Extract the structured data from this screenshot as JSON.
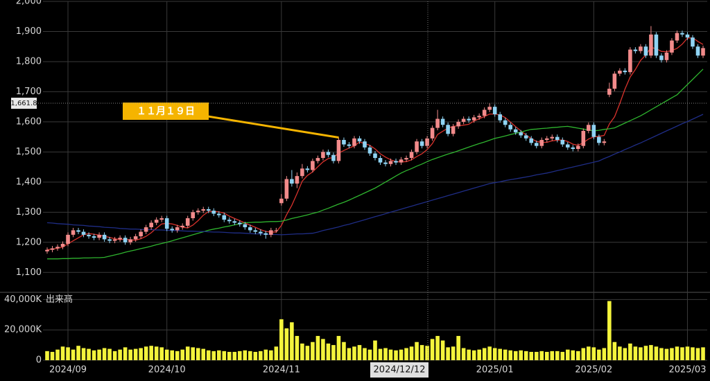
{
  "chart_data": {
    "type": "candlestick",
    "categories": [
      null,
      null,
      null,
      null,
      "2024/09",
      null,
      null,
      null,
      null,
      null,
      null,
      null,
      null,
      null,
      null,
      null,
      null,
      null,
      null,
      null,
      null,
      null,
      null,
      "2024/10",
      null,
      null,
      null,
      null,
      null,
      null,
      null,
      null,
      null,
      null,
      null,
      null,
      null,
      null,
      null,
      null,
      null,
      null,
      null,
      null,
      null,
      "2024/11",
      null,
      null,
      null,
      null,
      null,
      null,
      null,
      null,
      null,
      null,
      null,
      null,
      null,
      null,
      null,
      null,
      null,
      null,
      null,
      null,
      null,
      null,
      null,
      null,
      null,
      null,
      null,
      null,
      null,
      null,
      null,
      null,
      null,
      null,
      null,
      null,
      null,
      null,
      null,
      null,
      "2025/01",
      null,
      null,
      null,
      null,
      null,
      null,
      null,
      null,
      null,
      null,
      null,
      null,
      null,
      null,
      null,
      null,
      null,
      null,
      "2025/02",
      null,
      null,
      null,
      null,
      null,
      null,
      null,
      null,
      null,
      null,
      null,
      null,
      null,
      null,
      null,
      null,
      null,
      "2025/03",
      null,
      null,
      null
    ],
    "open": [
      1170,
      1175,
      1180,
      1185,
      1195,
      1225,
      1240,
      1235,
      1225,
      1220,
      1215,
      1225,
      1210,
      1205,
      1210,
      1215,
      1200,
      1210,
      1220,
      1235,
      1250,
      1265,
      1275,
      1280,
      1245,
      1240,
      1250,
      1255,
      1280,
      1300,
      1305,
      1310,
      1305,
      1295,
      1290,
      1275,
      1270,
      1265,
      1260,
      1250,
      1240,
      1235,
      1230,
      1225,
      1240,
      1330,
      1345,
      1410,
      1395,
      1420,
      1445,
      1440,
      1470,
      1480,
      1500,
      1490,
      1470,
      1540,
      1525,
      1520,
      1545,
      1535,
      1515,
      1495,
      1480,
      1465,
      1460,
      1470,
      1465,
      1475,
      1480,
      1500,
      1535,
      1520,
      1545,
      1580,
      1610,
      1590,
      1560,
      1585,
      1600,
      1610,
      1605,
      1615,
      1620,
      1640,
      1650,
      1625,
      1605,
      1590,
      1575,
      1565,
      1555,
      1545,
      1530,
      1520,
      1540,
      1545,
      1550,
      1540,
      1525,
      1515,
      1510,
      1520,
      1570,
      1590,
      1550,
      1530,
      1690,
      1710,
      1760,
      1770,
      1765,
      1840,
      1835,
      1850,
      1820,
      1890,
      1820,
      1805,
      1830,
      1870,
      1895,
      1890,
      1880,
      1850,
      1820
    ],
    "high": [
      1183,
      1188,
      1193,
      1203,
      1233,
      1248,
      1248,
      1243,
      1233,
      1228,
      1233,
      1233,
      1218,
      1218,
      1223,
      1223,
      1218,
      1228,
      1243,
      1258,
      1273,
      1283,
      1288,
      1288,
      1253,
      1258,
      1263,
      1288,
      1308,
      1313,
      1318,
      1318,
      1313,
      1303,
      1298,
      1283,
      1278,
      1273,
      1268,
      1258,
      1248,
      1243,
      1238,
      1248,
      1248,
      1360,
      1420,
      1440,
      1432,
      1460,
      1453,
      1478,
      1488,
      1508,
      1508,
      1498,
      1548,
      1548,
      1533,
      1553,
      1553,
      1543,
      1523,
      1503,
      1488,
      1473,
      1478,
      1478,
      1483,
      1488,
      1508,
      1543,
      1543,
      1553,
      1588,
      1640,
      1618,
      1598,
      1593,
      1608,
      1618,
      1618,
      1623,
      1628,
      1648,
      1662,
      1658,
      1633,
      1613,
      1598,
      1583,
      1573,
      1563,
      1553,
      1538,
      1548,
      1553,
      1558,
      1558,
      1548,
      1533,
      1523,
      1528,
      1578,
      1598,
      1598,
      1558,
      1543,
      1730,
      1768,
      1778,
      1778,
      1848,
      1848,
      1858,
      1858,
      1918,
      1898,
      1828,
      1838,
      1878,
      1903,
      1903,
      1898,
      1888,
      1858,
      1853
    ],
    "low": [
      1162,
      1167,
      1172,
      1177,
      1187,
      1217,
      1227,
      1217,
      1212,
      1207,
      1207,
      1202,
      1197,
      1197,
      1202,
      1192,
      1192,
      1202,
      1212,
      1227,
      1242,
      1257,
      1267,
      1237,
      1232,
      1232,
      1242,
      1247,
      1272,
      1292,
      1297,
      1297,
      1287,
      1282,
      1267,
      1262,
      1257,
      1252,
      1242,
      1232,
      1227,
      1222,
      1212,
      1217,
      1232,
      1322,
      1337,
      1385,
      1380,
      1412,
      1432,
      1432,
      1462,
      1472,
      1482,
      1462,
      1462,
      1517,
      1512,
      1512,
      1527,
      1507,
      1487,
      1472,
      1457,
      1452,
      1452,
      1457,
      1457,
      1467,
      1472,
      1492,
      1512,
      1512,
      1537,
      1572,
      1582,
      1552,
      1552,
      1577,
      1592,
      1597,
      1597,
      1607,
      1612,
      1632,
      1617,
      1597,
      1582,
      1567,
      1557,
      1547,
      1537,
      1522,
      1512,
      1512,
      1532,
      1537,
      1532,
      1517,
      1507,
      1502,
      1502,
      1512,
      1562,
      1542,
      1522,
      1522,
      1682,
      1702,
      1752,
      1757,
      1757,
      1827,
      1827,
      1812,
      1812,
      1812,
      1797,
      1797,
      1822,
      1862,
      1882,
      1872,
      1842,
      1812,
      1812
    ],
    "close": [
      1175,
      1180,
      1185,
      1195,
      1225,
      1240,
      1235,
      1225,
      1220,
      1215,
      1225,
      1210,
      1205,
      1210,
      1215,
      1200,
      1210,
      1220,
      1235,
      1250,
      1265,
      1275,
      1280,
      1245,
      1240,
      1250,
      1255,
      1280,
      1300,
      1305,
      1310,
      1305,
      1295,
      1290,
      1275,
      1270,
      1265,
      1260,
      1250,
      1240,
      1235,
      1230,
      1225,
      1240,
      1240,
      1345,
      1410,
      1395,
      1420,
      1445,
      1440,
      1470,
      1480,
      1500,
      1490,
      1470,
      1540,
      1525,
      1520,
      1545,
      1535,
      1515,
      1495,
      1480,
      1465,
      1460,
      1470,
      1465,
      1475,
      1480,
      1500,
      1535,
      1520,
      1545,
      1580,
      1610,
      1590,
      1560,
      1585,
      1600,
      1610,
      1605,
      1615,
      1620,
      1640,
      1650,
      1625,
      1605,
      1590,
      1575,
      1565,
      1555,
      1545,
      1530,
      1520,
      1540,
      1545,
      1550,
      1540,
      1525,
      1515,
      1510,
      1520,
      1570,
      1590,
      1550,
      1530,
      1535,
      1710,
      1760,
      1770,
      1765,
      1840,
      1835,
      1850,
      1820,
      1890,
      1820,
      1805,
      1830,
      1870,
      1895,
      1890,
      1880,
      1850,
      1820,
      1845
    ],
    "up_color": "#f28b8b",
    "down_color": "#8fd3f3",
    "moving_averages": [
      {
        "color": "#d8322c",
        "values": [
          1175,
          1178,
          1180,
          1184,
          1195,
          1205,
          1215,
          1225,
          1229,
          1227,
          1224,
          1220,
          1216,
          1212,
          1209,
          1210,
          1208,
          1207,
          1212,
          1220,
          1232,
          1247,
          1261,
          1263,
          1261,
          1256,
          1250,
          1248,
          1257,
          1272,
          1290,
          1302,
          1303,
          1301,
          1297,
          1287,
          1279,
          1272,
          1264,
          1257,
          1250,
          1242,
          1236,
          1234,
          1234,
          1256,
          1292,
          1323,
          1362,
          1403,
          1422,
          1434,
          1451,
          1467,
          1478,
          1482,
          1496,
          1505,
          1513,
          1520,
          1533,
          1528,
          1522,
          1510,
          1494,
          1483,
          1474,
          1468,
          1467,
          1468,
          1474,
          1485,
          1494,
          1508,
          1528,
          1558,
          1569,
          1579,
          1585,
          1587,
          1589,
          1592,
          1603,
          1610,
          1618,
          1626,
          1626,
          1623,
          1614,
          1599,
          1584,
          1570,
          1556,
          1545,
          1535,
          1532,
          1532,
          1537,
          1539,
          1540,
          1535,
          1526,
          1522,
          1531,
          1543,
          1550,
          1552,
          1555,
          1593,
          1617,
          1661,
          1709,
          1749,
          1774,
          1804,
          1822,
          1847,
          1843,
          1834,
          1833,
          1837,
          1844,
          1858,
          1878,
          1879,
          1867,
          1857
        ]
      },
      {
        "color": "#2fb52f",
        "values": [
          1145,
          1145,
          1145,
          1146,
          1146,
          1147,
          1147,
          1148,
          1148,
          1149,
          1149,
          1150,
          1154,
          1158,
          1162,
          1167,
          1171,
          1175,
          1179,
          1183,
          1187,
          1192,
          1196,
          1200,
          1205,
          1210,
          1215,
          1220,
          1225,
          1230,
          1235,
          1240,
          1244,
          1247,
          1251,
          1254,
          1258,
          1261,
          1265,
          1266,
          1267,
          1267,
          1268,
          1269,
          1269,
          1270,
          1274,
          1279,
          1283,
          1287,
          1291,
          1296,
          1300,
          1307,
          1313,
          1320,
          1327,
          1333,
          1340,
          1348,
          1356,
          1364,
          1372,
          1380,
          1390,
          1400,
          1410,
          1420,
          1430,
          1438,
          1445,
          1453,
          1460,
          1468,
          1475,
          1481,
          1487,
          1493,
          1498,
          1504,
          1510,
          1516,
          1522,
          1528,
          1533,
          1539,
          1545,
          1549,
          1553,
          1558,
          1562,
          1566,
          1571,
          1575,
          1576,
          1578,
          1579,
          1581,
          1582,
          1584,
          1585,
          1582,
          1579,
          1576,
          1573,
          1570,
          1572,
          1575,
          1577,
          1580,
          1588,
          1596,
          1604,
          1612,
          1620,
          1630,
          1640,
          1650,
          1660,
          1670,
          1680,
          1690,
          1707,
          1724,
          1741,
          1758,
          1775
        ]
      },
      {
        "color": "#1f2d86",
        "values": [
          1265,
          1264,
          1262,
          1261,
          1260,
          1258,
          1257,
          1256,
          1254,
          1253,
          1252,
          1250,
          1249,
          1248,
          1246,
          1245,
          1244,
          1244,
          1243,
          1242,
          1242,
          1241,
          1241,
          1240,
          1239,
          1239,
          1238,
          1237,
          1237,
          1236,
          1236,
          1235,
          1234,
          1234,
          1233,
          1232,
          1231,
          1231,
          1230,
          1229,
          1228,
          1228,
          1227,
          1226,
          1226,
          1225,
          1226,
          1227,
          1228,
          1228,
          1229,
          1230,
          1234,
          1239,
          1243,
          1247,
          1251,
          1256,
          1260,
          1265,
          1270,
          1275,
          1280,
          1285,
          1290,
          1295,
          1300,
          1305,
          1310,
          1315,
          1320,
          1325,
          1330,
          1335,
          1340,
          1345,
          1350,
          1355,
          1360,
          1365,
          1370,
          1375,
          1380,
          1385,
          1390,
          1395,
          1398,
          1401,
          1405,
          1408,
          1411,
          1414,
          1417,
          1420,
          1424,
          1427,
          1430,
          1434,
          1438,
          1442,
          1446,
          1450,
          1454,
          1458,
          1462,
          1466,
          1470,
          1478,
          1485,
          1493,
          1500,
          1508,
          1515,
          1523,
          1530,
          1538,
          1546,
          1554,
          1562,
          1570,
          1578,
          1586,
          1594,
          1601,
          1609,
          1617,
          1625
        ]
      }
    ],
    "ylim": [
      1050,
      2000
    ],
    "yticks": [
      {
        "value": 1100,
        "label": "1,100"
      },
      {
        "value": 1200,
        "label": "1,200"
      },
      {
        "value": 1300,
        "label": "1,300"
      },
      {
        "value": 1400,
        "label": "1,400"
      },
      {
        "value": 1500,
        "label": "1,500"
      },
      {
        "value": 1600,
        "label": "1,600"
      },
      {
        "value": 1700,
        "label": "1,700"
      },
      {
        "value": 1800,
        "label": "1,800"
      },
      {
        "value": 1900,
        "label": "1,900"
      },
      {
        "value": 2000,
        "label": "2,000"
      }
    ],
    "grid": true,
    "volume": {
      "label": "出来高",
      "color": "#f4f43c",
      "ylim": [
        0,
        42000
      ],
      "yticks": [
        0,
        {
          "value": 20000,
          "label": "20,000K"
        },
        {
          "value": 40000,
          "label": "40,000K"
        }
      ],
      "values": [
        6000,
        5500,
        7000,
        9000,
        8500,
        7000,
        9500,
        8000,
        7500,
        6500,
        7000,
        8000,
        7500,
        6000,
        7000,
        8500,
        7000,
        7500,
        8000,
        9000,
        9500,
        9000,
        8500,
        7000,
        6500,
        6000,
        7000,
        9000,
        8500,
        8000,
        7500,
        6500,
        6000,
        6500,
        6000,
        5500,
        5500,
        6000,
        6500,
        6000,
        5500,
        6000,
        7000,
        6500,
        9000,
        27000,
        21000,
        25000,
        16000,
        11000,
        9500,
        12000,
        16000,
        14000,
        11000,
        10000,
        16000,
        12000,
        8000,
        9000,
        10000,
        8000,
        7000,
        13000,
        7500,
        8000,
        7000,
        6500,
        7000,
        8000,
        9000,
        12000,
        10000,
        9500,
        14000,
        16000,
        13000,
        8500,
        9000,
        16000,
        8000,
        7000,
        6500,
        7000,
        8000,
        9000,
        8000,
        7500,
        7000,
        6500,
        6000,
        6500,
        6000,
        5500,
        5500,
        6000,
        5500,
        6000,
        6000,
        5500,
        7000,
        6500,
        6000,
        8000,
        9000,
        8500,
        7000,
        8000,
        39000,
        12000,
        9000,
        8000,
        11000,
        9000,
        8500,
        9500,
        10000,
        9000,
        8000,
        7500,
        8000,
        9000,
        8500,
        9000,
        8500,
        8000,
        8500
      ]
    },
    "annotation": {
      "text": "１１月１９日",
      "color": "#f5b400"
    },
    "crosshair": {
      "x_label": "2024/12/12",
      "y": 1661.8,
      "y_label": "1,661.8"
    }
  }
}
